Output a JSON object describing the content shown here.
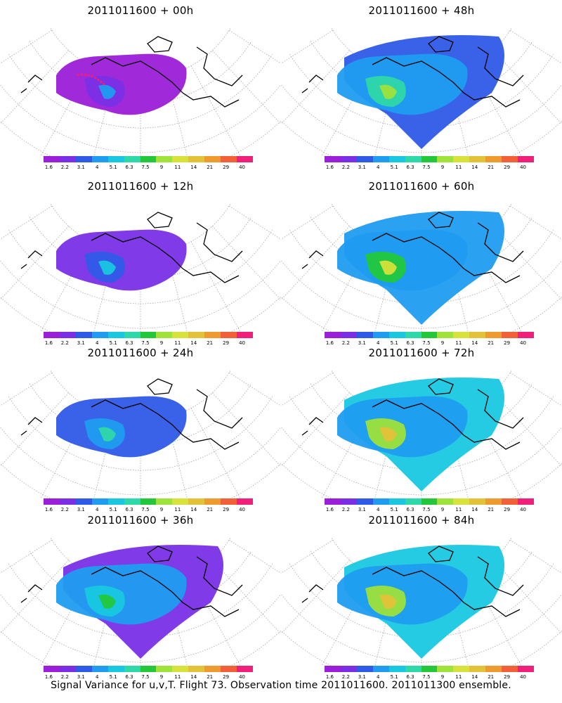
{
  "panels": [
    {
      "title": "2011011600 + 00h",
      "lead": "00h"
    },
    {
      "title": "2011011600 + 48h",
      "lead": "48h"
    },
    {
      "title": "2011011600 + 12h",
      "lead": "12h"
    },
    {
      "title": "2011011600 + 60h",
      "lead": "60h"
    },
    {
      "title": "2011011600 + 24h",
      "lead": "24h"
    },
    {
      "title": "2011011600 + 72h",
      "lead": "72h"
    },
    {
      "title": "2011011600 + 36h",
      "lead": "36h"
    },
    {
      "title": "2011011600 + 84h",
      "lead": "84h"
    }
  ],
  "colorbar": {
    "labels": [
      "1.6",
      "2.2",
      "3.1",
      "4",
      "5.1",
      "6.3",
      "7.5",
      "9",
      "11",
      "14",
      "21",
      "29",
      "40"
    ],
    "colors": [
      "#9b1fd8",
      "#7a2fe6",
      "#2f5ae8",
      "#1f9cf0",
      "#19c8e0",
      "#2fd8a8",
      "#22c83a",
      "#9ee23a",
      "#d7e23a",
      "#e3c23a",
      "#ee9a2e",
      "#f2603a",
      "#f0207a"
    ]
  },
  "footer": "Signal Variance for u,v,T. Flight 73. Observation time 2011011600. 2011011300 ensemble."
}
